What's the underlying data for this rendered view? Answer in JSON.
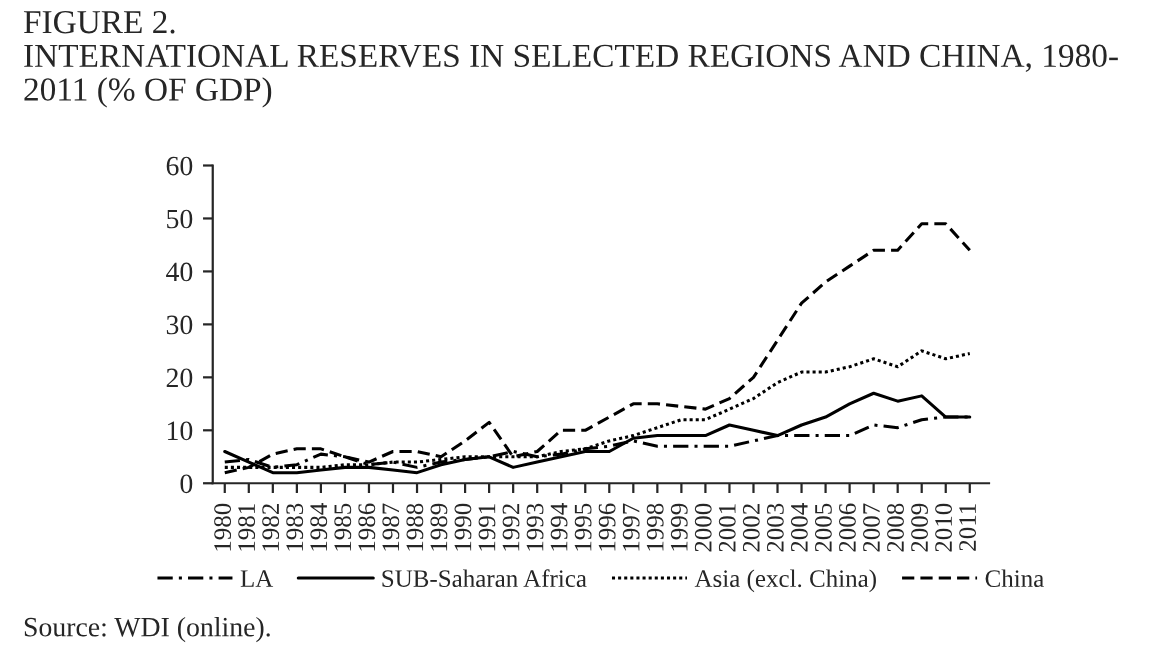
{
  "chart_data": {
    "type": "line",
    "title": "FIGURE 2.\nINTERNATIONAL RESERVES IN SELECTED REGIONS AND CHINA, 1980-\n2011 (% OF GDP)",
    "categories": [
      "1980",
      "1981",
      "1982",
      "1983",
      "1984",
      "1985",
      "1986",
      "1987",
      "1988",
      "1989",
      "1990",
      "1991",
      "1992",
      "1993",
      "1994",
      "1995",
      "1996",
      "1997",
      "1998",
      "1999",
      "2000",
      "2001",
      "2002",
      "2003",
      "2004",
      "2005",
      "2006",
      "2007",
      "2008",
      "2009",
      "2010",
      "2011"
    ],
    "series": [
      {
        "name": "LA",
        "color": "#000000",
        "line_style": "dashdot",
        "values": [
          4,
          4.5,
          3,
          3.5,
          5.5,
          5,
          3.5,
          4,
          3,
          4,
          4.5,
          5,
          6,
          5,
          5.5,
          6.5,
          7,
          8,
          7,
          7,
          7,
          7,
          8,
          9,
          9,
          9,
          9,
          11,
          10.5,
          12,
          12.5,
          12.5
        ]
      },
      {
        "name": "SUB-Saharan Africa",
        "color": "#000000",
        "line_style": "solid",
        "values": [
          6,
          4,
          2,
          2,
          2.5,
          3,
          3,
          2.5,
          2,
          3.5,
          4.5,
          5,
          3,
          4,
          5,
          6,
          6,
          8.5,
          9,
          9,
          9,
          11,
          10,
          9,
          11,
          12.5,
          15,
          17,
          15.5,
          16.5,
          12.5,
          12.5
        ]
      },
      {
        "name": "Asia (excl. China)",
        "color": "#000000",
        "line_style": "dotted",
        "values": [
          3,
          3,
          3,
          3,
          3,
          3.5,
          3.5,
          4,
          4,
          4.5,
          5,
          5,
          5,
          5,
          6,
          6.5,
          8,
          9,
          10.5,
          12,
          12,
          14,
          16,
          19,
          21,
          21,
          22,
          23.5,
          22,
          25,
          23.5,
          24.5
        ]
      },
      {
        "name": "China",
        "color": "#000000",
        "line_style": "dashed",
        "values": [
          2,
          3,
          5.5,
          6.5,
          6.5,
          5,
          4,
          6,
          6,
          5,
          8,
          11.5,
          5,
          6,
          10,
          10,
          12.5,
          15,
          15,
          14.5,
          14,
          16,
          20,
          27,
          34,
          38,
          41,
          44,
          44,
          49,
          49,
          44
        ]
      }
    ],
    "ylim": [
      0,
      60
    ],
    "yticks": [
      0,
      10,
      20,
      30,
      40,
      50,
      60
    ],
    "grid": false,
    "legend": "bottom",
    "annotations": [
      "Source: WDI (online)."
    ]
  }
}
